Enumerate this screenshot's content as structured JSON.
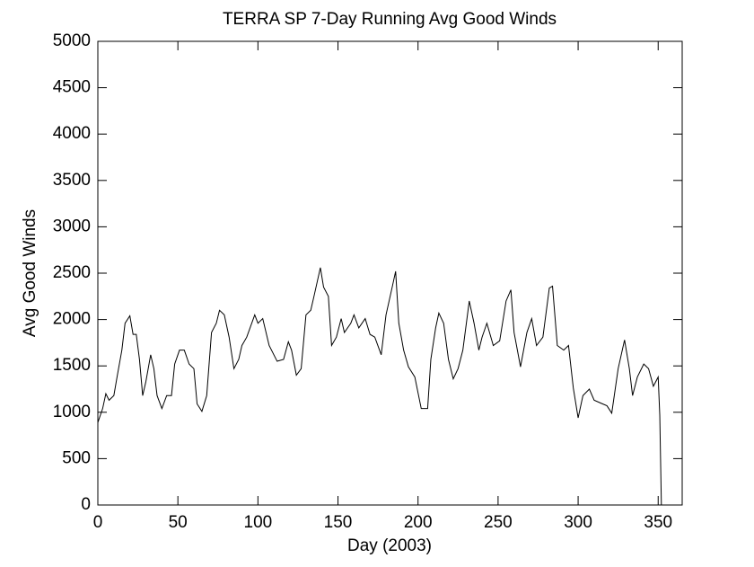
{
  "chart_data": {
    "type": "line",
    "title": "TERRA SP 7-Day Running Avg Good Winds",
    "x_label": "Day (2003)",
    "y_label": "Avg Good Winds",
    "xlim": [
      0,
      365
    ],
    "ylim": [
      0,
      5000
    ],
    "xticks": [
      0,
      50,
      100,
      150,
      200,
      250,
      300,
      350
    ],
    "yticks": [
      0,
      500,
      1000,
      1500,
      2000,
      2500,
      3000,
      3500,
      4000,
      4500,
      5000
    ],
    "grid": false,
    "series": [
      {
        "name": "Avg Good Winds",
        "color": "#000000",
        "x": [
          0,
          3,
          5,
          7,
          10,
          12,
          15,
          17,
          20,
          22,
          24,
          26,
          28,
          30,
          33,
          35,
          37,
          40,
          43,
          46,
          48,
          51,
          54,
          57,
          60,
          62,
          65,
          68,
          71,
          74,
          76,
          79,
          82,
          85,
          88,
          90,
          93,
          98,
          100,
          103,
          107,
          112,
          116,
          119,
          121,
          124,
          127,
          130,
          133,
          135,
          139,
          141,
          144,
          146,
          149,
          152,
          154,
          158,
          160,
          163,
          167,
          170,
          173,
          177,
          180,
          184,
          186,
          188,
          191,
          194,
          198,
          202,
          206,
          208,
          211,
          213,
          216,
          219,
          222,
          225,
          228,
          232,
          235,
          238,
          240,
          243,
          247,
          251,
          255,
          258,
          260,
          264,
          268,
          271,
          274,
          278,
          282,
          284,
          287,
          291,
          294,
          297,
          300,
          303,
          307,
          310,
          314,
          318,
          321,
          325,
          329,
          332,
          334,
          337,
          341,
          344,
          347,
          350,
          351,
          352
        ],
        "values": [
          890,
          1040,
          1200,
          1130,
          1180,
          1380,
          1670,
          1960,
          2040,
          1840,
          1840,
          1570,
          1180,
          1330,
          1620,
          1470,
          1180,
          1040,
          1180,
          1180,
          1520,
          1670,
          1670,
          1520,
          1470,
          1090,
          1010,
          1180,
          1860,
          1960,
          2100,
          2050,
          1810,
          1470,
          1570,
          1720,
          1810,
          2050,
          1960,
          2010,
          1720,
          1550,
          1570,
          1760,
          1670,
          1400,
          1470,
          2050,
          2100,
          2250,
          2560,
          2350,
          2250,
          1720,
          1810,
          2010,
          1860,
          1960,
          2050,
          1910,
          2010,
          1840,
          1810,
          1620,
          2050,
          2360,
          2520,
          1960,
          1670,
          1490,
          1380,
          1040,
          1040,
          1570,
          1910,
          2070,
          1960,
          1570,
          1360,
          1470,
          1670,
          2200,
          1960,
          1670,
          1810,
          1960,
          1720,
          1770,
          2200,
          2320,
          1860,
          1490,
          1860,
          2010,
          1720,
          1810,
          2340,
          2360,
          1720,
          1670,
          1720,
          1260,
          940,
          1180,
          1250,
          1130,
          1100,
          1070,
          990,
          1470,
          1780,
          1470,
          1180,
          1380,
          1520,
          1470,
          1280,
          1380,
          970,
          0
        ]
      }
    ]
  }
}
